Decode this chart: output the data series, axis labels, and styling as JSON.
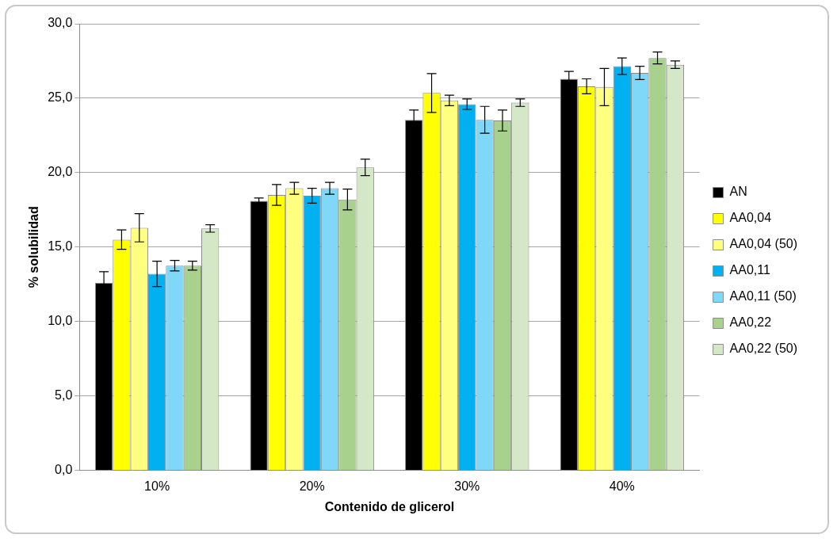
{
  "chart_data": {
    "type": "bar",
    "xlabel": "Contenido de glicerol",
    "ylabel": "% solubilidad",
    "categories": [
      "10%",
      "20%",
      "30%",
      "40%"
    ],
    "ylim": [
      0,
      30
    ],
    "yticks": [
      {
        "value": 0,
        "label": "0,0"
      },
      {
        "value": 5,
        "label": "5,0"
      },
      {
        "value": 10,
        "label": "10,0"
      },
      {
        "value": 15,
        "label": "15,0"
      },
      {
        "value": 20,
        "label": "20,0"
      },
      {
        "value": 25,
        "label": "25,0"
      },
      {
        "value": 30,
        "label": "30,0"
      }
    ],
    "grid": "y",
    "legend": "right",
    "series": [
      {
        "name": "AN",
        "color": "#000000",
        "values": [
          12.6,
          18.1,
          23.55,
          26.3
        ],
        "errors": [
          0.75,
          0.2,
          0.65,
          0.5
        ]
      },
      {
        "name": "AA0,04",
        "color": "#ffff00",
        "values": [
          15.5,
          18.5,
          25.35,
          25.8
        ],
        "errors": [
          0.65,
          0.7,
          1.3,
          0.5
        ]
      },
      {
        "name": "AA0,04 (50)",
        "color": "#ffff80",
        "values": [
          16.3,
          18.95,
          24.85,
          25.75
        ],
        "errors": [
          0.95,
          0.4,
          0.35,
          1.25
        ]
      },
      {
        "name": "AA0,11",
        "color": "#00b0f0",
        "values": [
          13.2,
          18.45,
          24.6,
          27.15
        ],
        "errors": [
          0.85,
          0.5,
          0.35,
          0.55
        ]
      },
      {
        "name": "AA0,11 (50)",
        "color": "#80d8f8",
        "values": [
          13.75,
          18.95,
          23.55,
          26.7
        ],
        "errors": [
          0.35,
          0.4,
          0.9,
          0.45
        ]
      },
      {
        "name": "AA0,22",
        "color": "#a9d18e",
        "values": [
          13.75,
          18.2,
          23.5,
          27.7
        ],
        "errors": [
          0.3,
          0.7,
          0.7,
          0.4
        ]
      },
      {
        "name": "AA0,22 (50)",
        "color": "#d4e8c7",
        "values": [
          16.25,
          20.35,
          24.7,
          27.25
        ],
        "errors": [
          0.25,
          0.55,
          0.25,
          0.25
        ]
      }
    ]
  }
}
